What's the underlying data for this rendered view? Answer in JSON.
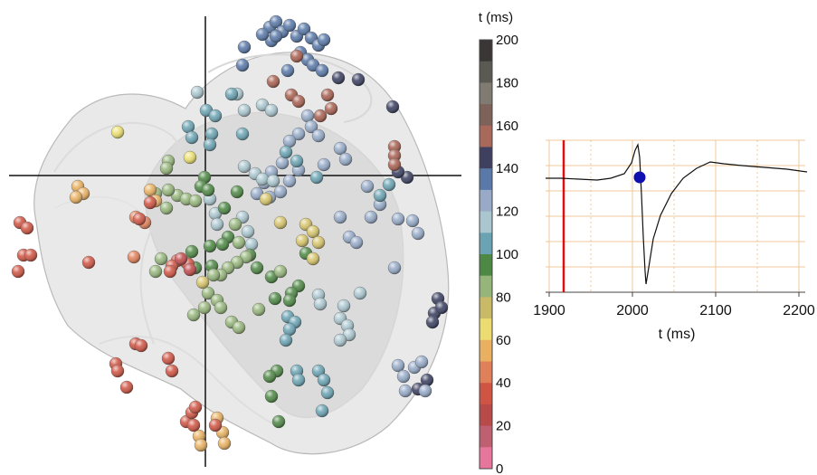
{
  "colorbar": {
    "title": "t (ms)",
    "ticks": [
      "200",
      "180",
      "160",
      "140",
      "120",
      "100",
      "80",
      "60",
      "40",
      "20",
      "0"
    ],
    "colors": [
      "#3a3636",
      "#5b5a52",
      "#7f7a72",
      "#7e6259",
      "#a8685a",
      "#3f3f60",
      "#5b79a8",
      "#98aac8",
      "#aac6cf",
      "#6aa3b3",
      "#4e8845",
      "#95b57a",
      "#c9ba68",
      "#ecdb70",
      "#e8b060",
      "#e0805a",
      "#cf5443",
      "#b94a4a",
      "#bf6070",
      "#e7769d"
    ]
  },
  "trace": {
    "xlabel": "t (ms)",
    "xticks": [
      "1900",
      "2000",
      "2100",
      "2200"
    ]
  }
}
